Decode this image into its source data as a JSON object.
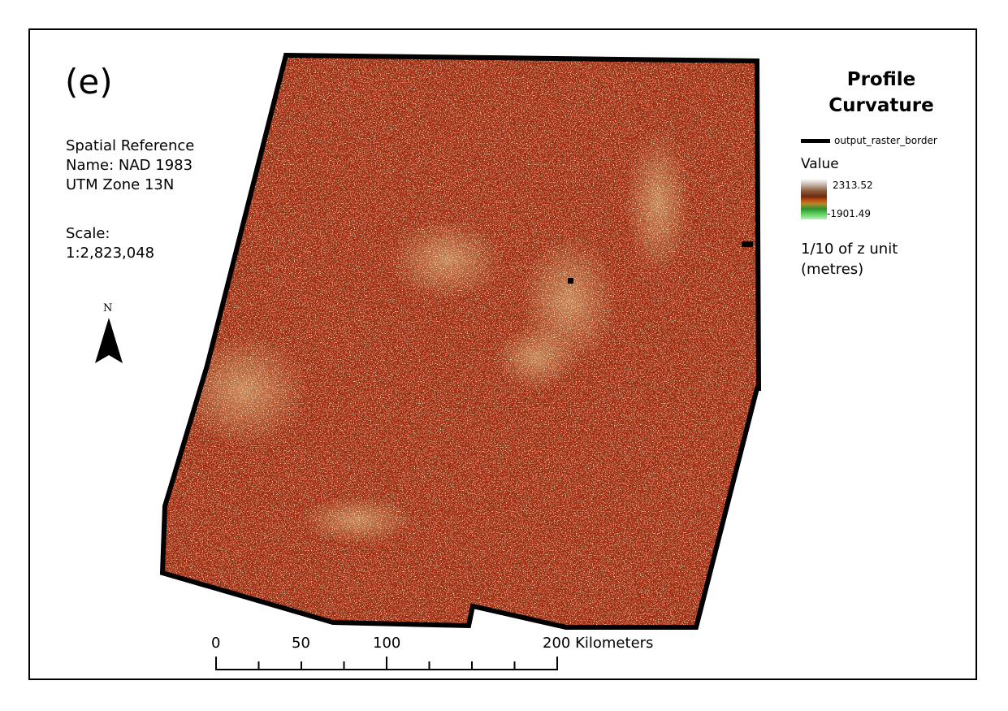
{
  "panel_label": "(e)",
  "spatial_reference": {
    "line1": "Spatial Reference",
    "line2": "Name: NAD 1983",
    "line3": "UTM Zone 13N"
  },
  "scale": {
    "heading": "Scale:",
    "value": "1:2,823,048"
  },
  "north_arrow": {
    "letter": "N",
    "icon": "north-arrow-icon"
  },
  "legend": {
    "title_line1": "Profile",
    "title_line2": "Curvature",
    "border_layer_label": "output_raster_border",
    "value_heading": "Value",
    "max_value": "2313.52",
    "min_value": "-1901.49",
    "unit_line1": "1/10 of z unit",
    "unit_line2": "(metres)"
  },
  "scale_bar": {
    "labels": [
      "0",
      "50",
      "100",
      "200 Kilometers"
    ]
  },
  "colors": {
    "raster_base": "#9b2a10",
    "raster_highlight": "#e8d49a",
    "border": "#000000"
  }
}
